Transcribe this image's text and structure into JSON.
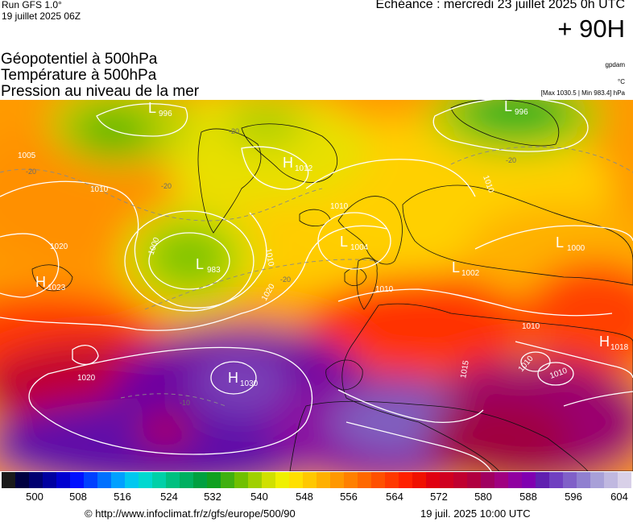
{
  "header": {
    "run_label": "Run GFS 1.0°",
    "run_date": "19 juillet 2025 06Z",
    "echeance": "Echéance : mercredi 23 juillet 2025 0h UTC",
    "horizon": "+ 90H"
  },
  "titles": {
    "line1": "Géopotentiel à 500hPa",
    "line2": "Température à 500hPa",
    "line3": "Pression au niveau de la mer"
  },
  "units": {
    "geopotential": "gpdam",
    "temperature": "°C",
    "pressure_range": "[Max 1030.5 | Min 983.4] hPa"
  },
  "map": {
    "pressure_centers": [
      {
        "type": "L",
        "value": "996"
      },
      {
        "type": "H",
        "value": "1023"
      },
      {
        "type": "L",
        "value": "983"
      },
      {
        "type": "H",
        "value": "1030"
      },
      {
        "type": "L",
        "value": "996"
      },
      {
        "type": "L",
        "value": "1004"
      },
      {
        "type": "L",
        "value": "1000"
      },
      {
        "type": "L",
        "value": "1002"
      },
      {
        "type": "H",
        "value": "1018"
      },
      {
        "type": "H",
        "value": "1012"
      }
    ],
    "isobar_labels": [
      "1020",
      "1010",
      "1000",
      "1010",
      "1020",
      "1020",
      "1010",
      "1010",
      "1010",
      "1015",
      "1010",
      "1010",
      "1010",
      "1005"
    ],
    "temperature_labels": [
      "-20",
      "-20",
      "-20",
      "-10",
      "-20",
      "-20"
    ]
  },
  "legend": {
    "colors": [
      "#1a1a1a",
      "#000040",
      "#000070",
      "#0000a0",
      "#0000d0",
      "#0010ff",
      "#0040ff",
      "#0070ff",
      "#00a0ff",
      "#00c8f0",
      "#00d8d0",
      "#00d0a8",
      "#00c080",
      "#00b060",
      "#00a040",
      "#10a020",
      "#40b010",
      "#70c000",
      "#a0d000",
      "#d0e000",
      "#f0f000",
      "#ffe000",
      "#ffc800",
      "#ffb000",
      "#ff9800",
      "#ff8000",
      "#ff6800",
      "#ff5000",
      "#ff3800",
      "#ff2000",
      "#f01000",
      "#e00010",
      "#d00020",
      "#c00030",
      "#b00040",
      "#a00060",
      "#a00080",
      "#9000a0",
      "#8000b0",
      "#6020b0",
      "#7040c0",
      "#8060c8",
      "#9080d0",
      "#a8a0d8",
      "#c0b8e0",
      "#d8d0e8"
    ],
    "ticks": [
      "500",
      "508",
      "516",
      "524",
      "532",
      "540",
      "548",
      "556",
      "564",
      "572",
      "580",
      "588",
      "596",
      "604"
    ]
  },
  "footer": {
    "url": "© http://www.infoclimat.fr/z/gfs/europe/500/90",
    "timestamp": "19 juil. 2025 10:00 UTC"
  }
}
